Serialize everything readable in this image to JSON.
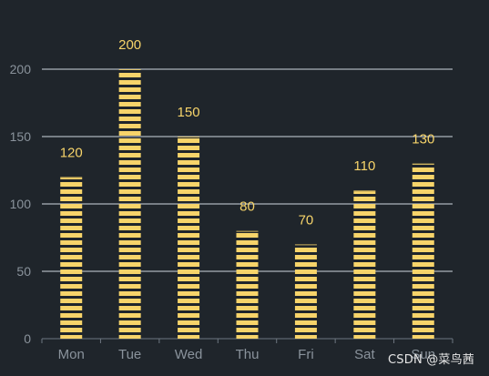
{
  "chart_data": {
    "type": "bar",
    "categories": [
      "Mon",
      "Tue",
      "Wed",
      "Thu",
      "Fri",
      "Sat",
      "Sun"
    ],
    "values": [
      120,
      200,
      150,
      80,
      70,
      110,
      130
    ],
    "title": "",
    "xlabel": "",
    "ylabel": "",
    "ylim": [
      0,
      200
    ],
    "yticks": [
      0,
      50,
      100,
      150,
      200
    ],
    "grid": true,
    "bar_style": "striped",
    "colors": {
      "bar": "#f7d46a",
      "data_label": "#f7d46a",
      "grid": "#cfd6df",
      "axis": "#6e7781",
      "tick_label": "#8a939c",
      "background": "#1f252b"
    }
  },
  "watermark": "CSDN @菜鸟茜"
}
